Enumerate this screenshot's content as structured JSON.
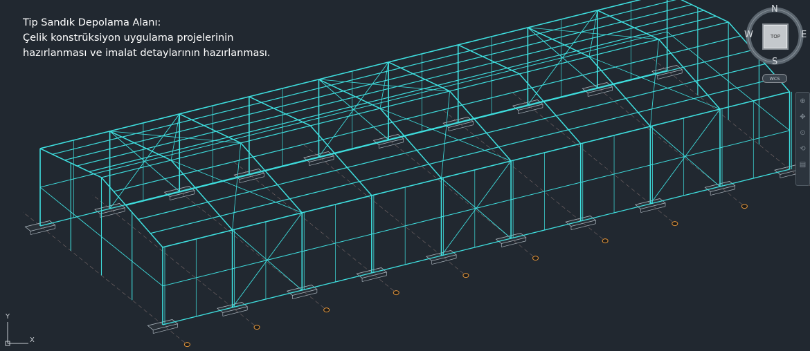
{
  "caption": {
    "title": "Tip Sandık Depolama Alanı:",
    "line1": "Çelik konstrüksiyon uygulama projelerinin",
    "line2": "hazırlanması ve imalat detaylarının hazırlanması."
  },
  "viewcube": {
    "north": "N",
    "south": "S",
    "east": "E",
    "west": "W",
    "face": "TOP"
  },
  "wcs_label": "WCS",
  "ucs": {
    "x_label": "X",
    "y_label": "Y"
  },
  "navbar": {
    "icons": [
      "steering-wheel-icon",
      "pan-icon",
      "zoom-icon",
      "orbit-icon",
      "showmotion-icon"
    ]
  },
  "colors": {
    "background": "#212830",
    "steel": "#3fe0e0",
    "footing": "#aab4bc",
    "grid_bubble": "#e5963a"
  }
}
